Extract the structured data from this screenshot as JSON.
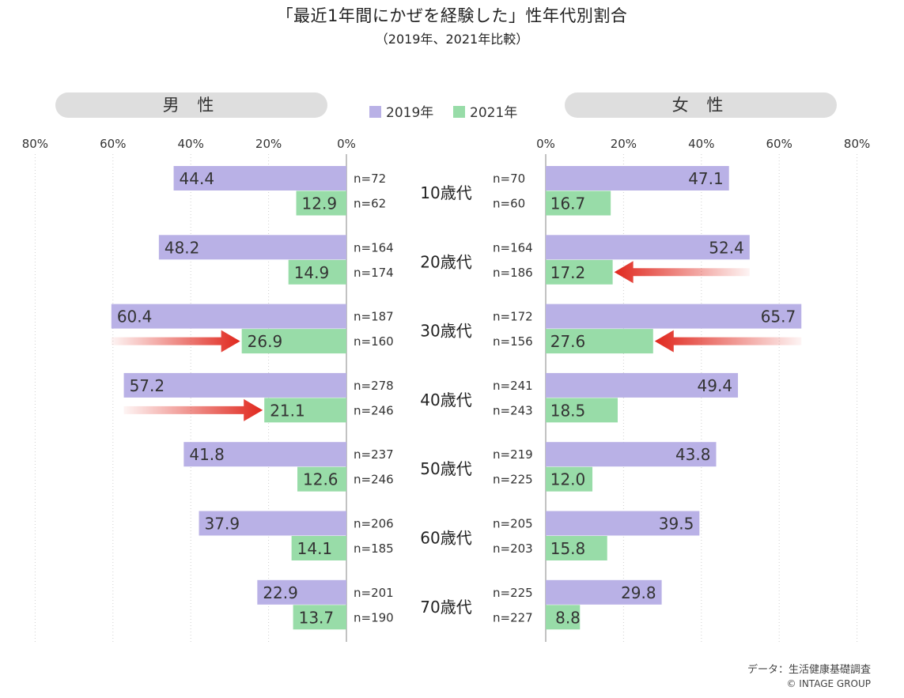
{
  "title": "「最近1年間にかぜを経験した」性年代別割合",
  "subtitle": "（2019年、2021年比較）",
  "footer": {
    "source": "データ：生活健康基礎調査",
    "copyright": "© INTAGE GROUP"
  },
  "colors": {
    "2019": "#b9b1e6",
    "2021": "#98dca8",
    "arrow": "#e0281e",
    "pill": "#dedede",
    "grid": "#cfcfcf"
  },
  "chart_data": {
    "type": "bar",
    "orientation": "horizontal",
    "layout": "butterfly",
    "unit": "%",
    "legend": [
      "2019年",
      "2021年"
    ],
    "axis_ticks": [
      "80%",
      "60%",
      "40%",
      "20%",
      "0%"
    ],
    "axis_ticks_right": [
      "0%",
      "20%",
      "40%",
      "60%",
      "80%"
    ],
    "xlim": [
      0,
      80
    ],
    "categories": [
      "10歳代",
      "20歳代",
      "30歳代",
      "40歳代",
      "50歳代",
      "60歳代",
      "70歳代"
    ],
    "panels": [
      {
        "name": "男 性",
        "side": "left",
        "series": [
          {
            "name": "2019年",
            "values": [
              44.4,
              48.2,
              60.4,
              57.2,
              41.8,
              37.9,
              22.9
            ],
            "n": [
              "n=72",
              "n=164",
              "n=187",
              "n=278",
              "n=237",
              "n=206",
              "n=201"
            ]
          },
          {
            "name": "2021年",
            "values": [
              12.9,
              14.9,
              26.9,
              21.1,
              12.6,
              14.1,
              13.7
            ],
            "n": [
              "n=62",
              "n=174",
              "n=160",
              "n=246",
              "n=246",
              "n=185",
              "n=190"
            ]
          }
        ]
      },
      {
        "name": "女 性",
        "side": "right",
        "series": [
          {
            "name": "2019年",
            "values": [
              47.1,
              52.4,
              65.7,
              49.4,
              43.8,
              39.5,
              29.8
            ],
            "n": [
              "n=70",
              "n=164",
              "n=172",
              "n=241",
              "n=219",
              "n=205",
              "n=225"
            ]
          },
          {
            "name": "2021年",
            "values": [
              16.7,
              17.2,
              27.6,
              18.5,
              12.0,
              15.8,
              8.8
            ],
            "n": [
              "n=60",
              "n=186",
              "n=156",
              "n=243",
              "n=225",
              "n=203",
              "n=227"
            ]
          }
        ]
      }
    ],
    "highlight_arrows": [
      {
        "panel": "女 性",
        "category": "20歳代",
        "series": "2021年"
      },
      {
        "panel": "男 性",
        "category": "30歳代",
        "series": "2021年"
      },
      {
        "panel": "女 性",
        "category": "30歳代",
        "series": "2021年"
      },
      {
        "panel": "男 性",
        "category": "40歳代",
        "series": "2021年"
      }
    ]
  }
}
